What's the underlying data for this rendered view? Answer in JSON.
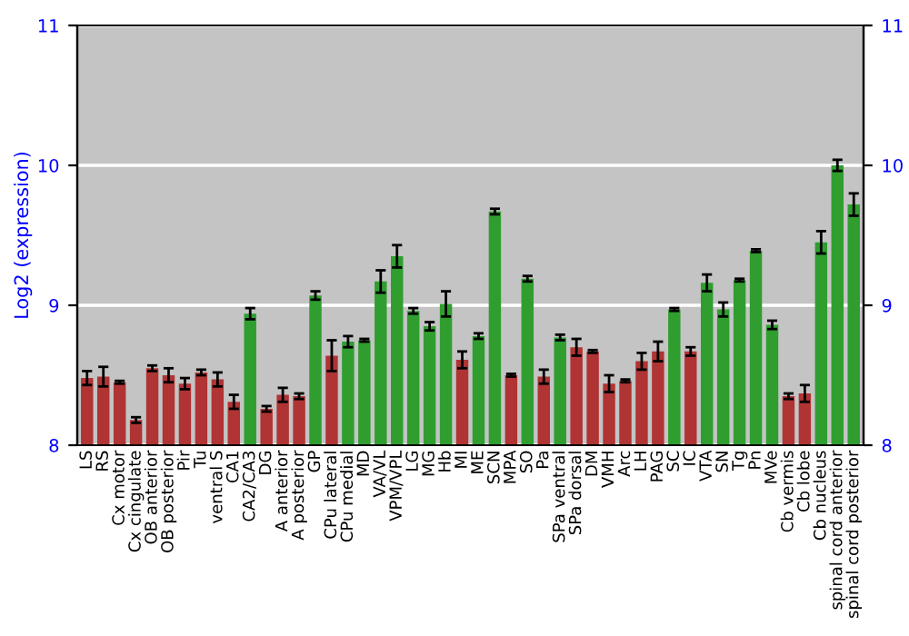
{
  "chart_data": {
    "type": "bar",
    "ylabel": "Log2 (expression)",
    "categories": [
      "LS",
      "RS",
      "Cx motor",
      "Cx cingulate",
      "OB anterior",
      "OB posterior",
      "Pir",
      "Tu",
      "ventral S",
      "CA1",
      "CA2/CA3",
      "DG",
      "A anterior",
      "A posterior",
      "GP",
      "CPu lateral",
      "CPu medial",
      "MD",
      "VA/VL",
      "VPM/VPL",
      "LG",
      "MG",
      "Hb",
      "MI",
      "ME",
      "SCN",
      "MPA",
      "SO",
      "Pa",
      "SPa ventral",
      "SPa dorsal",
      "DM",
      "VMH",
      "Arc",
      "LH",
      "PAG",
      "SC",
      "IC",
      "VTA",
      "SN",
      "Tg",
      "Pn",
      "MVe",
      "Cb vermis",
      "Cb lobe",
      "Cb nucleus",
      "spinal cord anterior",
      "spinal cord posterior"
    ],
    "values": [
      8.48,
      8.49,
      8.45,
      8.18,
      8.55,
      8.5,
      8.44,
      8.52,
      8.47,
      8.31,
      8.94,
      8.26,
      8.36,
      8.35,
      9.07,
      8.64,
      8.74,
      8.75,
      9.17,
      9.35,
      8.96,
      8.85,
      9.01,
      8.61,
      8.78,
      9.67,
      8.5,
      9.19,
      8.49,
      8.77,
      8.7,
      8.67,
      8.44,
      8.46,
      8.6,
      8.67,
      8.97,
      8.67,
      9.16,
      8.97,
      9.18,
      9.39,
      8.86,
      8.35,
      8.37,
      9.45,
      10.0,
      9.72
    ],
    "errors": [
      0.05,
      0.07,
      0.01,
      0.02,
      0.02,
      0.05,
      0.04,
      0.02,
      0.05,
      0.05,
      0.04,
      0.02,
      0.05,
      0.02,
      0.03,
      0.11,
      0.04,
      0.01,
      0.08,
      0.08,
      0.02,
      0.03,
      0.09,
      0.06,
      0.02,
      0.02,
      0.01,
      0.02,
      0.05,
      0.02,
      0.06,
      0.01,
      0.06,
      0.01,
      0.06,
      0.07,
      0.01,
      0.03,
      0.06,
      0.05,
      0.01,
      0.01,
      0.03,
      0.02,
      0.06,
      0.08,
      0.04,
      0.08
    ],
    "colors": [
      "#b03434",
      "#b03434",
      "#b03434",
      "#b03434",
      "#b03434",
      "#b03434",
      "#b03434",
      "#b03434",
      "#b03434",
      "#b03434",
      "#2f9e2f",
      "#b03434",
      "#b03434",
      "#b03434",
      "#2f9e2f",
      "#b03434",
      "#2f9e2f",
      "#2f9e2f",
      "#2f9e2f",
      "#2f9e2f",
      "#2f9e2f",
      "#2f9e2f",
      "#2f9e2f",
      "#b03434",
      "#2f9e2f",
      "#2f9e2f",
      "#b03434",
      "#2f9e2f",
      "#b03434",
      "#2f9e2f",
      "#b03434",
      "#b03434",
      "#b03434",
      "#b03434",
      "#b03434",
      "#b03434",
      "#2f9e2f",
      "#b03434",
      "#2f9e2f",
      "#2f9e2f",
      "#2f9e2f",
      "#2f9e2f",
      "#2f9e2f",
      "#b03434",
      "#b03434",
      "#2f9e2f",
      "#2f9e2f",
      "#2f9e2f"
    ],
    "ylim": [
      8,
      11
    ],
    "yticks": [
      8,
      9,
      10,
      11
    ],
    "y2lim": [
      8,
      11
    ],
    "y2ticks": [
      8,
      9,
      10,
      11
    ],
    "grid": "y"
  }
}
